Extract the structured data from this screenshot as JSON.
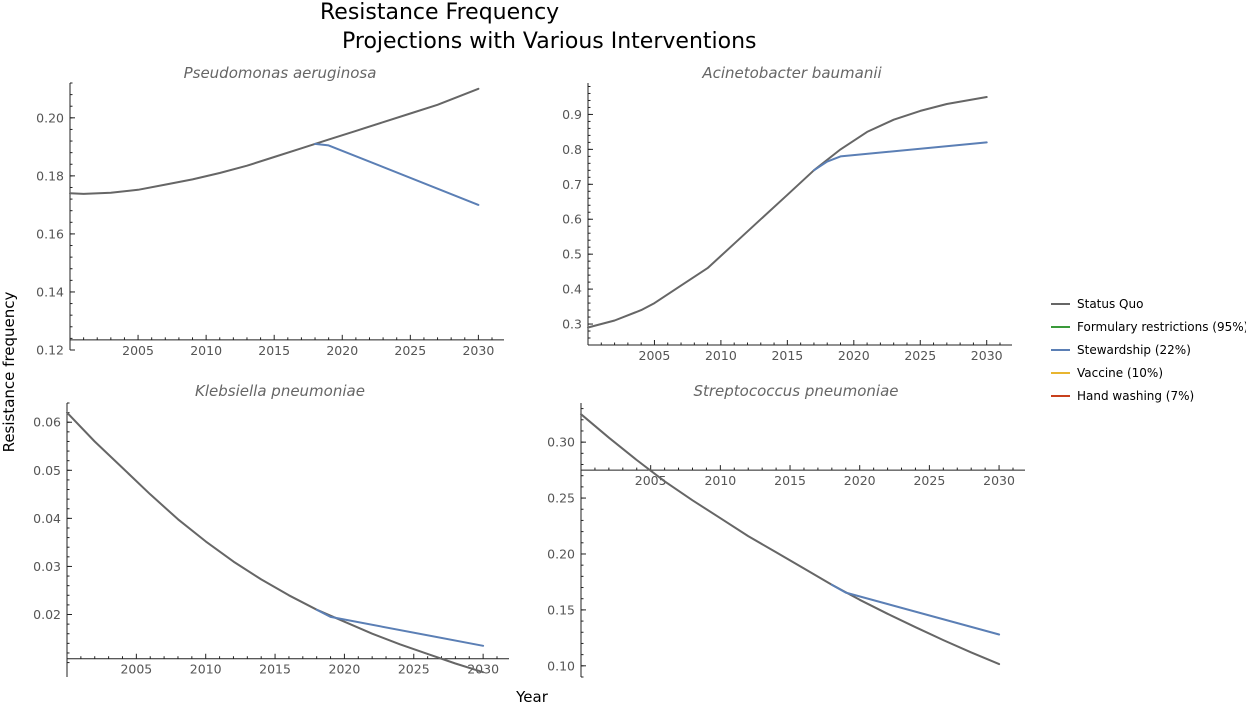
{
  "title_lines": [
    "Resistance Frequency",
    "Projections with Various Interventions"
  ],
  "xlabel": "Year",
  "ylabel": "Resistance frequency",
  "legend": [
    {
      "label": "Status Quo",
      "color": "#666666"
    },
    {
      "label": "Formulary restrictions (95%)",
      "color": "#3a9a3a"
    },
    {
      "label": "Stewardship (22%)",
      "color": "#5b7fb5"
    },
    {
      "label": "Vaccine (10%)",
      "color": "#e8b530"
    },
    {
      "label": "Hand washing (7%)",
      "color": "#c8401c"
    }
  ],
  "chart_data": [
    {
      "type": "line",
      "title": "Pseudomonas aeruginosa",
      "xlim": [
        2000,
        2031
      ],
      "ylim": [
        0.12,
        0.212
      ],
      "x_axis_at": 0.1235,
      "x_ticks": [
        2005,
        2010,
        2015,
        2020,
        2025,
        2030
      ],
      "y_ticks": [
        0.12,
        0.14,
        0.16,
        0.18,
        0.2
      ],
      "y_tick_labels": [
        "0.12",
        "0.14",
        "0.16",
        "0.18",
        "0.20"
      ],
      "series": [
        {
          "color": "#666666",
          "x": [
            2000,
            2001,
            2003,
            2005,
            2007,
            2009,
            2011,
            2013,
            2015,
            2017,
            2019,
            2021,
            2023,
            2025,
            2027,
            2030
          ],
          "y": [
            0.174,
            0.1738,
            0.1742,
            0.1752,
            0.177,
            0.1788,
            0.181,
            0.1835,
            0.1865,
            0.1895,
            0.1925,
            0.1955,
            0.1985,
            0.2015,
            0.2045,
            0.21
          ]
        },
        {
          "color": "#5b7fb5",
          "x": [
            2018,
            2019,
            2030
          ],
          "y": [
            0.191,
            0.1905,
            0.17
          ]
        }
      ]
    },
    {
      "type": "line",
      "title": "Acinetobacter baumanii",
      "xlim": [
        2000,
        2031
      ],
      "ylim": [
        0.24,
        0.99
      ],
      "x_axis_at": 0.24,
      "x_ticks": [
        2005,
        2010,
        2015,
        2020,
        2025,
        2030
      ],
      "y_ticks": [
        0.3,
        0.4,
        0.5,
        0.6,
        0.7,
        0.8,
        0.9
      ],
      "y_tick_labels": [
        "0.3",
        "0.4",
        "0.5",
        "0.6",
        "0.7",
        "0.8",
        "0.9"
      ],
      "series": [
        {
          "color": "#666666",
          "x": [
            2000,
            2002,
            2004,
            2005,
            2007,
            2009,
            2011,
            2013,
            2015,
            2017,
            2019,
            2021,
            2023,
            2025,
            2027,
            2030
          ],
          "y": [
            0.29,
            0.31,
            0.34,
            0.36,
            0.41,
            0.46,
            0.53,
            0.6,
            0.67,
            0.74,
            0.8,
            0.85,
            0.885,
            0.91,
            0.93,
            0.95
          ]
        },
        {
          "color": "#5b7fb5",
          "x": [
            2017,
            2018,
            2019,
            2030
          ],
          "y": [
            0.74,
            0.765,
            0.78,
            0.82
          ]
        }
      ]
    },
    {
      "type": "line",
      "title": "Klebsiella pneumoniae",
      "xlim": [
        2000,
        2031
      ],
      "ylim": [
        0.007,
        0.064
      ],
      "x_axis_at": 0.0108,
      "x_ticks": [
        2005,
        2010,
        2015,
        2020,
        2025,
        2030
      ],
      "y_ticks": [
        0.02,
        0.03,
        0.04,
        0.05,
        0.06
      ],
      "y_tick_labels": [
        "0.02",
        "0.03",
        "0.04",
        "0.05",
        "0.06"
      ],
      "series": [
        {
          "color": "#666666",
          "x": [
            2000,
            2002,
            2004,
            2006,
            2008,
            2010,
            2012,
            2014,
            2016,
            2018,
            2020,
            2022,
            2024,
            2026,
            2028,
            2030
          ],
          "y": [
            0.062,
            0.056,
            0.0505,
            0.045,
            0.0398,
            0.0352,
            0.031,
            0.0273,
            0.024,
            0.021,
            0.0185,
            0.016,
            0.0138,
            0.0118,
            0.0098,
            0.008
          ]
        },
        {
          "color": "#5b7fb5",
          "x": [
            2018,
            2019,
            2030
          ],
          "y": [
            0.021,
            0.0195,
            0.0135
          ]
        }
      ]
    },
    {
      "type": "line",
      "title": "Streptococcus pneumoniae",
      "xlim": [
        2000,
        2031
      ],
      "ylim": [
        0.09,
        0.335
      ],
      "x_axis_at": 0.275,
      "x_ticks": [
        2005,
        2010,
        2015,
        2020,
        2025,
        2030
      ],
      "y_ticks": [
        0.1,
        0.15,
        0.2,
        0.25,
        0.3
      ],
      "y_tick_labels": [
        "0.10",
        "0.15",
        "0.20",
        "0.25",
        "0.30"
      ],
      "series": [
        {
          "color": "#666666",
          "x": [
            2000,
            2002,
            2004,
            2006,
            2008,
            2010,
            2012,
            2014,
            2016,
            2018,
            2020,
            2022,
            2024,
            2026,
            2028,
            2030
          ],
          "y": [
            0.325,
            0.304,
            0.284,
            0.265,
            0.248,
            0.232,
            0.216,
            0.2015,
            0.187,
            0.1725,
            0.159,
            0.1465,
            0.1345,
            0.123,
            0.112,
            0.1015
          ]
        },
        {
          "color": "#5b7fb5",
          "x": [
            2018,
            2019,
            2030
          ],
          "y": [
            0.1725,
            0.1655,
            0.128
          ]
        }
      ]
    }
  ]
}
